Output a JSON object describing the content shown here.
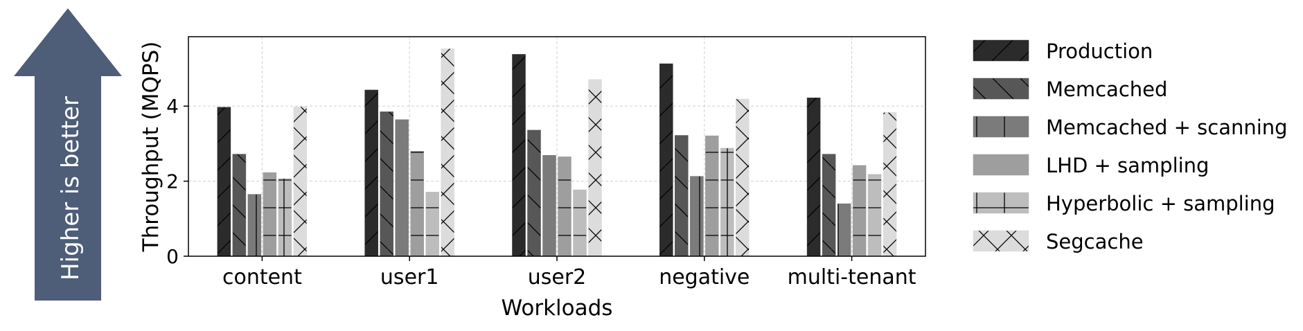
{
  "callout": {
    "text": "Higher is better"
  },
  "chart_data": {
    "type": "bar",
    "xlabel": "Workloads",
    "ylabel": "Throughput (MQPS)",
    "categories": [
      "content",
      "user1",
      "user2",
      "negative",
      "multi-tenant"
    ],
    "ylim": [
      0,
      5.85
    ],
    "yticks": [
      "0",
      "2",
      "4"
    ],
    "grid": true,
    "legend_position": "right",
    "series": [
      {
        "name": "Production",
        "color": "#2b2b2b",
        "pattern": "forward-diagonal",
        "values": [
          3.97,
          4.43,
          5.38,
          5.13,
          4.22
        ]
      },
      {
        "name": "Memcached",
        "color": "#575757",
        "pattern": "back-diagonal",
        "values": [
          2.72,
          3.85,
          3.36,
          3.22,
          2.72
        ]
      },
      {
        "name": "Memcached + scanning",
        "color": "#7b7b7b",
        "pattern": "vertical",
        "values": [
          1.65,
          3.64,
          2.69,
          2.13,
          1.4
        ]
      },
      {
        "name": "LHD + sampling",
        "color": "#9e9e9e",
        "pattern": "horizontal",
        "values": [
          2.23,
          2.8,
          2.65,
          3.21,
          2.42
        ]
      },
      {
        "name": "Hyperbolic + sampling",
        "color": "#bdbdbd",
        "pattern": "grid",
        "values": [
          2.07,
          1.71,
          1.77,
          2.88,
          2.18
        ]
      },
      {
        "name": "Segcache",
        "color": "#dcdcdc",
        "pattern": "crosshatch",
        "values": [
          3.98,
          5.53,
          4.71,
          4.19,
          3.83
        ]
      }
    ]
  }
}
